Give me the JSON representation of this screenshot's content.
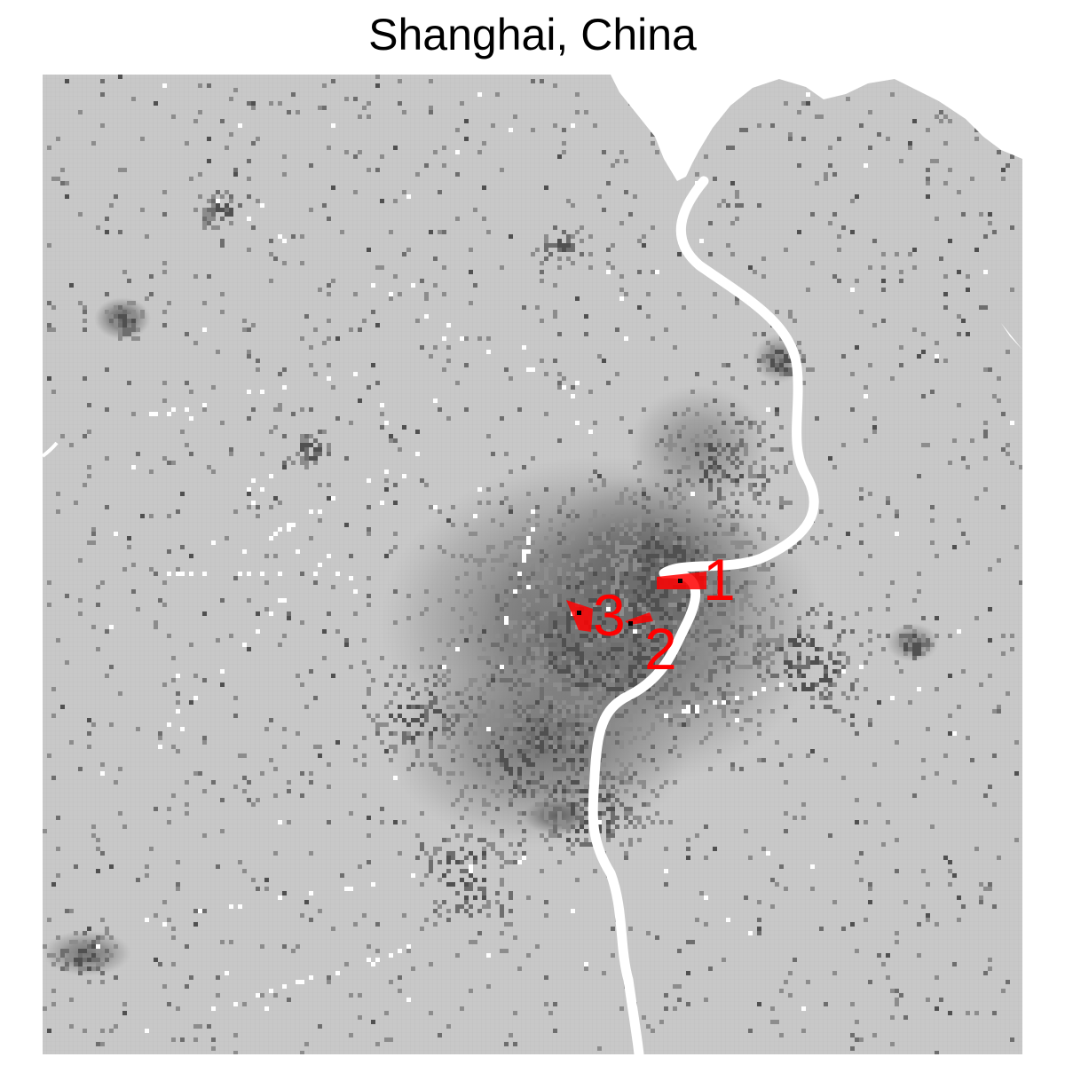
{
  "title": "Shanghai, China",
  "colors": {
    "land": "#c8c8c8",
    "water": "#ffffff",
    "urban_light": "#8c8c8c",
    "urban_mid": "#6e6e6e",
    "urban_dark": "#505050",
    "marker": "#ff0000",
    "marker_point": "#000000"
  },
  "markers": [
    {
      "label": "1"
    },
    {
      "label": "2"
    },
    {
      "label": "3"
    }
  ]
}
